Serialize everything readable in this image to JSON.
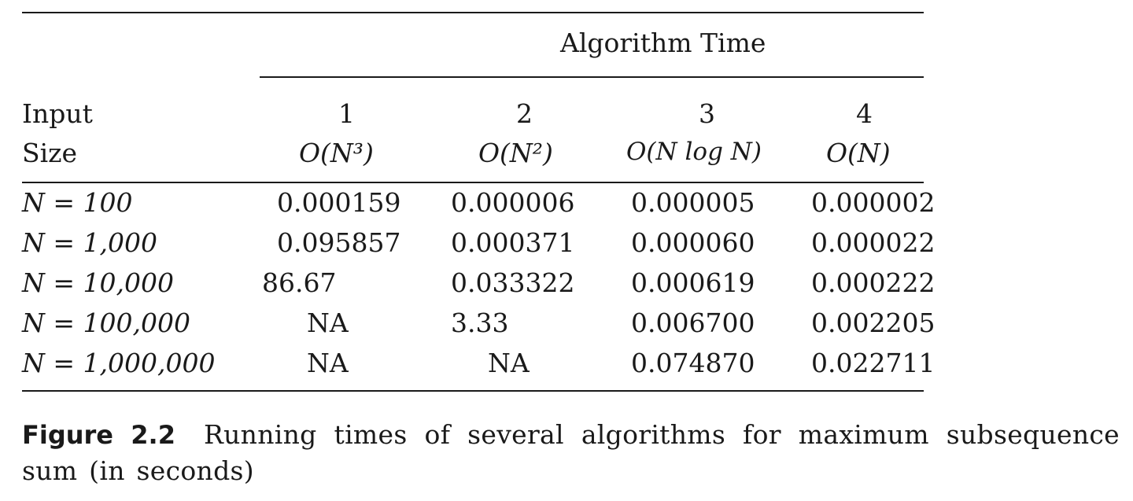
{
  "table": {
    "group_header": "Algorithm Time",
    "row_header": {
      "line1": "Input",
      "line2": "Size"
    },
    "columns": [
      {
        "number": "1",
        "complexity": "O(N³)"
      },
      {
        "number": "2",
        "complexity": "O(N²)"
      },
      {
        "number": "3",
        "complexity": "O(N log N)"
      },
      {
        "number": "4",
        "complexity": "O(N)"
      }
    ],
    "rows": [
      {
        "label": "N = 100",
        "values": [
          "0.000159",
          "0.000006",
          "0.000005",
          "0.000002"
        ]
      },
      {
        "label": "N = 1,000",
        "values": [
          "0.095857",
          "0.000371",
          "0.000060",
          "0.000022"
        ]
      },
      {
        "label": "N = 10,000",
        "values": [
          "86.67",
          "0.033322",
          "0.000619",
          "0.000222"
        ]
      },
      {
        "label": "N = 100,000",
        "values": [
          "NA",
          "3.33",
          "0.006700",
          "0.002205"
        ]
      },
      {
        "label": "N = 1,000,000",
        "values": [
          "NA",
          "NA",
          "0.074870",
          "0.022711"
        ]
      }
    ]
  },
  "caption": {
    "label": "Figure 2.2",
    "text": "Running times of several algorithms for maximum subsequence sum (in seconds)"
  }
}
